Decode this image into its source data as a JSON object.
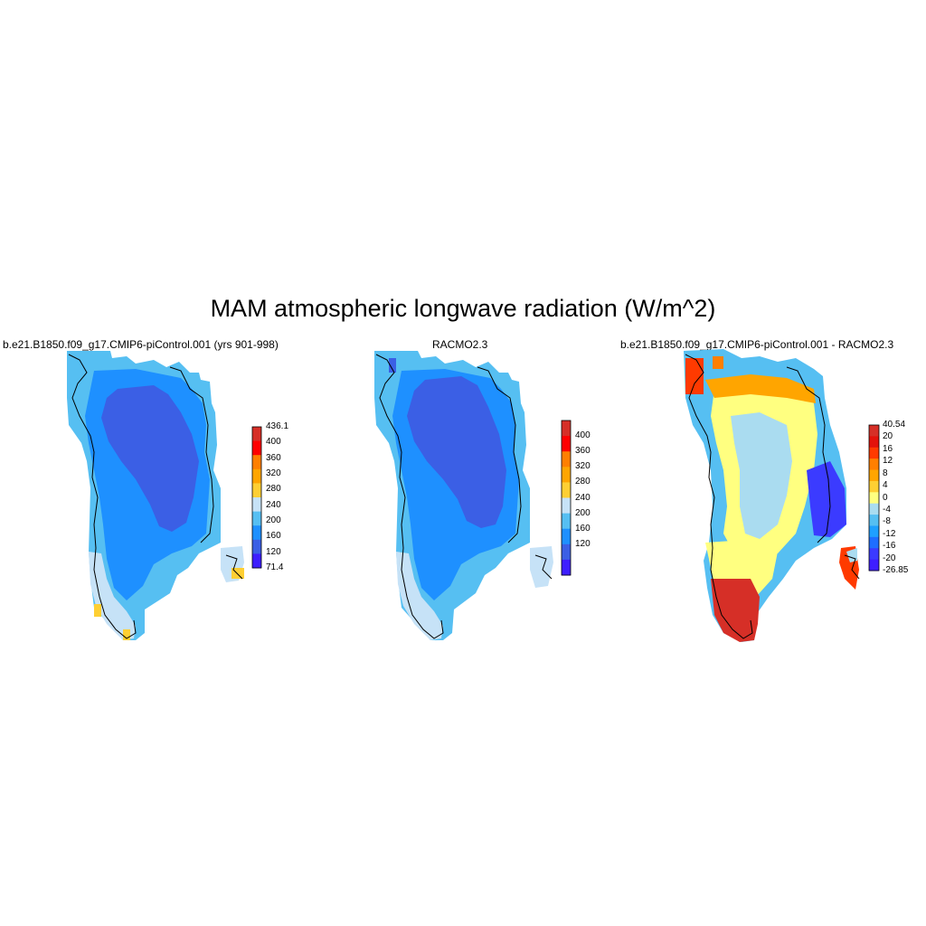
{
  "title": "MAM atmospheric longwave radiation (W/m^2)",
  "panels": [
    {
      "title": "b.e21.B1850.f09_g17.CMIP6-piControl.001 (yrs 901-998)",
      "colorbar": {
        "labels": [
          "436.1",
          "400",
          "360",
          "320",
          "280",
          "240",
          "200",
          "160",
          "120",
          "71.4"
        ],
        "colors": [
          "#d62f27",
          "#ff0000",
          "#ff7f00",
          "#ffa500",
          "#fecf33",
          "#c6e2f7",
          "#56bff2",
          "#1e90ff",
          "#3b5fe5",
          "#3e1eff"
        ]
      }
    },
    {
      "title": "RACMO2.3",
      "colorbar": {
        "labels": [
          "400",
          "360",
          "320",
          "280",
          "240",
          "200",
          "160",
          "120"
        ],
        "colors": [
          "#d62f27",
          "#ff0000",
          "#ff7f00",
          "#ffa500",
          "#fecf33",
          "#c6e2f7",
          "#56bff2",
          "#1e90ff",
          "#3b5fe5",
          "#3e1eff"
        ]
      }
    },
    {
      "title": "b.e21.B1850.f09_g17.CMIP6-piControl.001 - RACMO2.3",
      "colorbar": {
        "labels": [
          "40.54",
          "20",
          "16",
          "12",
          "8",
          "4",
          "0",
          "-4",
          "-8",
          "-12",
          "-16",
          "-20",
          "-26.85"
        ],
        "colors": [
          "#d62f27",
          "#e3120b",
          "#ff3a00",
          "#ff7f00",
          "#ffa500",
          "#fecf33",
          "#ffff80",
          "#aadcf0",
          "#56bff2",
          "#1ea0ff",
          "#1e6eff",
          "#3b3bff",
          "#3e1eff"
        ]
      }
    }
  ]
}
